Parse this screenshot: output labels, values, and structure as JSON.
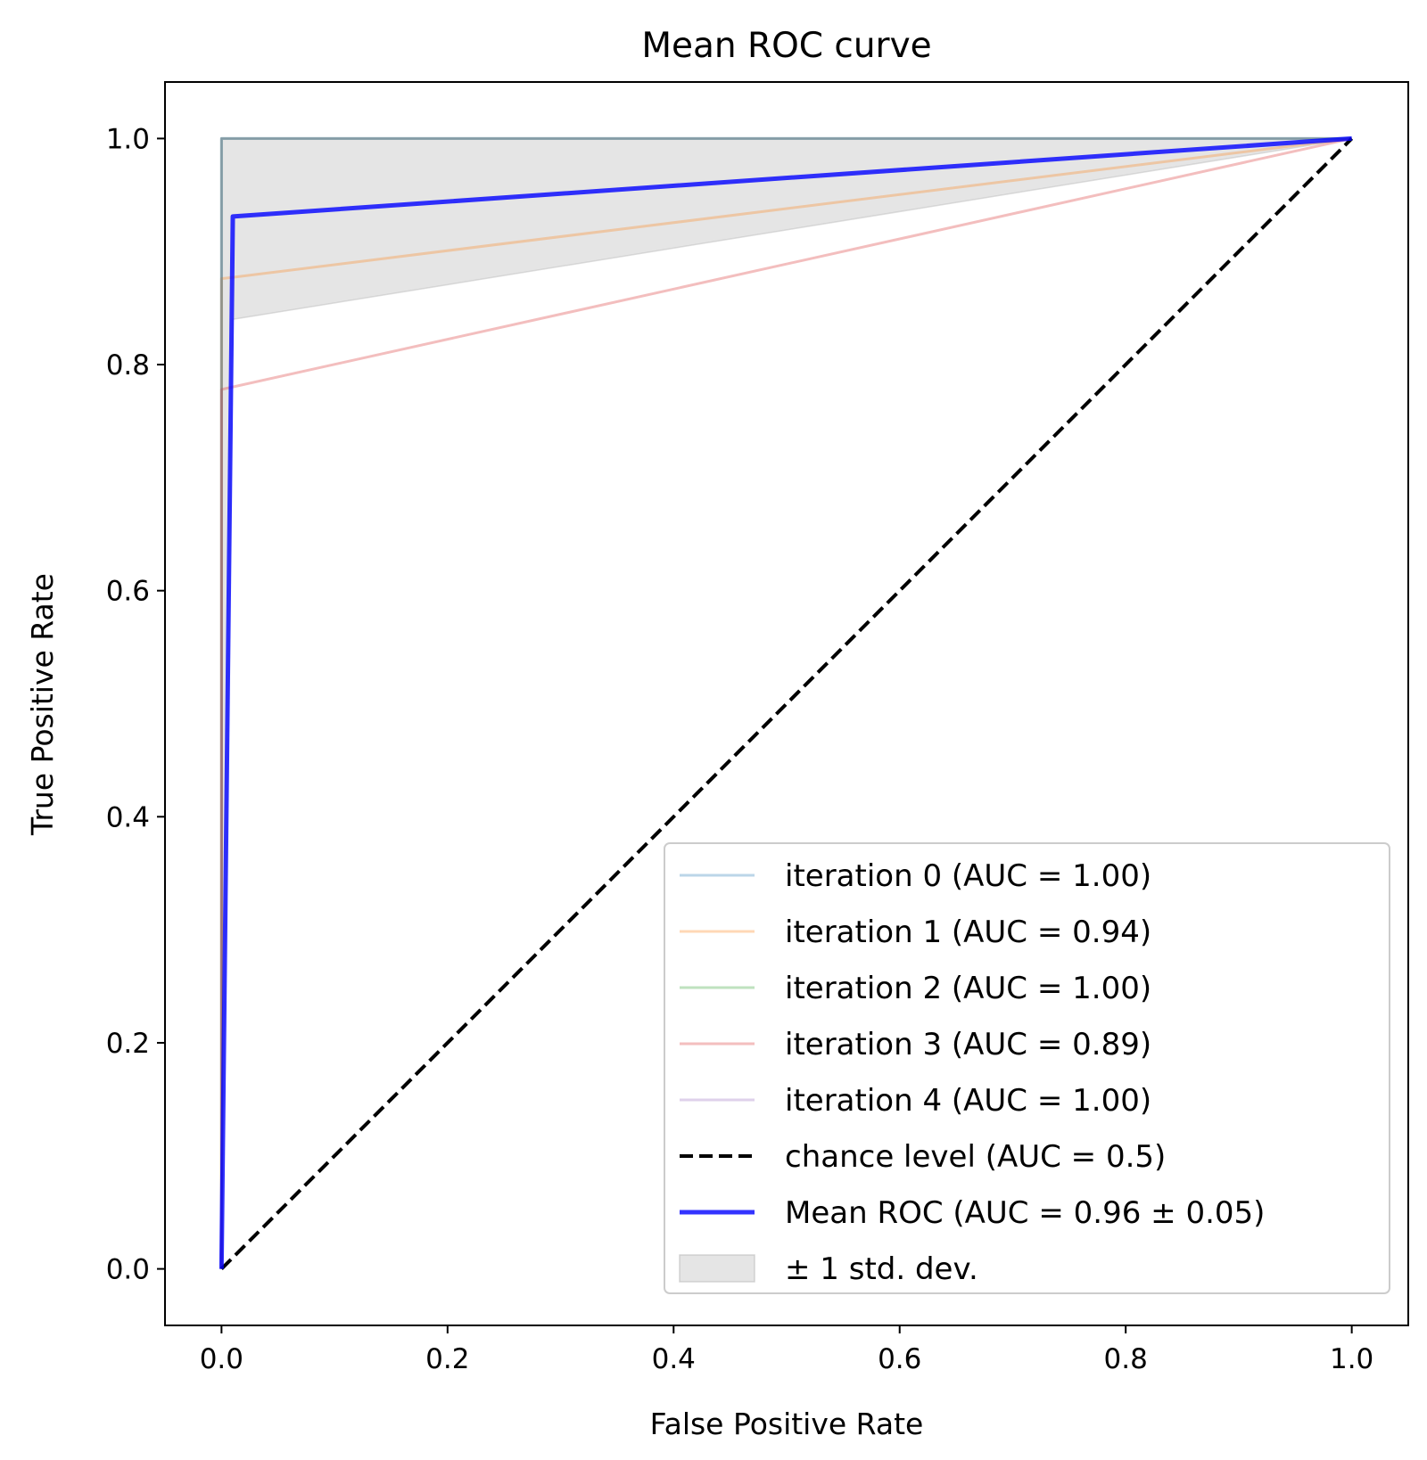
{
  "chart_data": {
    "type": "line",
    "title": "Mean ROC curve",
    "xlabel": "False Positive Rate",
    "ylabel": "True Positive Rate",
    "xlim": [
      -0.05,
      1.05
    ],
    "ylim": [
      -0.05,
      1.05
    ],
    "xticks": [
      "0.0",
      "0.2",
      "0.4",
      "0.6",
      "0.8",
      "1.0"
    ],
    "yticks": [
      "0.0",
      "0.2",
      "0.4",
      "0.6",
      "0.8",
      "1.0"
    ],
    "grid": false,
    "legend_position": "lower-right",
    "std_band": {
      "name": "± 1 std. dev.",
      "color": "#bdbdbd",
      "upper": [
        [
          0.0,
          1.0
        ],
        [
          0.01,
          1.0
        ],
        [
          1.0,
          1.0
        ]
      ],
      "lower": [
        [
          0.0,
          0.0
        ],
        [
          0.01,
          0.84
        ],
        [
          1.0,
          1.0
        ]
      ]
    },
    "series": [
      {
        "name": "iteration 0 (AUC = 1.00)",
        "color": "#1f77b4",
        "opacity": 0.3,
        "width": 3,
        "dash": "",
        "points": [
          [
            0,
            0
          ],
          [
            0,
            1
          ],
          [
            1,
            1
          ]
        ]
      },
      {
        "name": "iteration 1 (AUC = 0.94)",
        "color": "#ff7f0e",
        "opacity": 0.3,
        "width": 3,
        "dash": "",
        "points": [
          [
            0,
            0
          ],
          [
            0,
            0.876
          ],
          [
            1,
            1
          ]
        ]
      },
      {
        "name": "iteration 2 (AUC = 1.00)",
        "color": "#2ca02c",
        "opacity": 0.3,
        "width": 3,
        "dash": "",
        "points": [
          [
            0,
            0
          ],
          [
            0,
            1
          ],
          [
            1,
            1
          ]
        ]
      },
      {
        "name": "iteration 3 (AUC = 0.89)",
        "color": "#d62728",
        "opacity": 0.3,
        "width": 3,
        "dash": "",
        "points": [
          [
            0,
            0
          ],
          [
            0,
            0.778
          ],
          [
            1,
            1
          ]
        ]
      },
      {
        "name": "iteration 4 (AUC = 1.00)",
        "color": "#9467bd",
        "opacity": 0.3,
        "width": 3,
        "dash": "",
        "points": [
          [
            0,
            0
          ],
          [
            0,
            1
          ],
          [
            1,
            1
          ]
        ]
      },
      {
        "name": "chance level (AUC = 0.5)",
        "color": "#000000",
        "opacity": 1,
        "width": 4,
        "dash": "15 7",
        "points": [
          [
            0,
            0
          ],
          [
            1,
            1
          ]
        ]
      },
      {
        "name": "Mean ROC (AUC = 0.96 ± 0.05)",
        "color": "#0000ff",
        "opacity": 0.8,
        "width": 5,
        "dash": "",
        "points": [
          [
            0,
            0
          ],
          [
            0.01,
            0.931
          ],
          [
            1,
            1
          ]
        ]
      }
    ]
  }
}
